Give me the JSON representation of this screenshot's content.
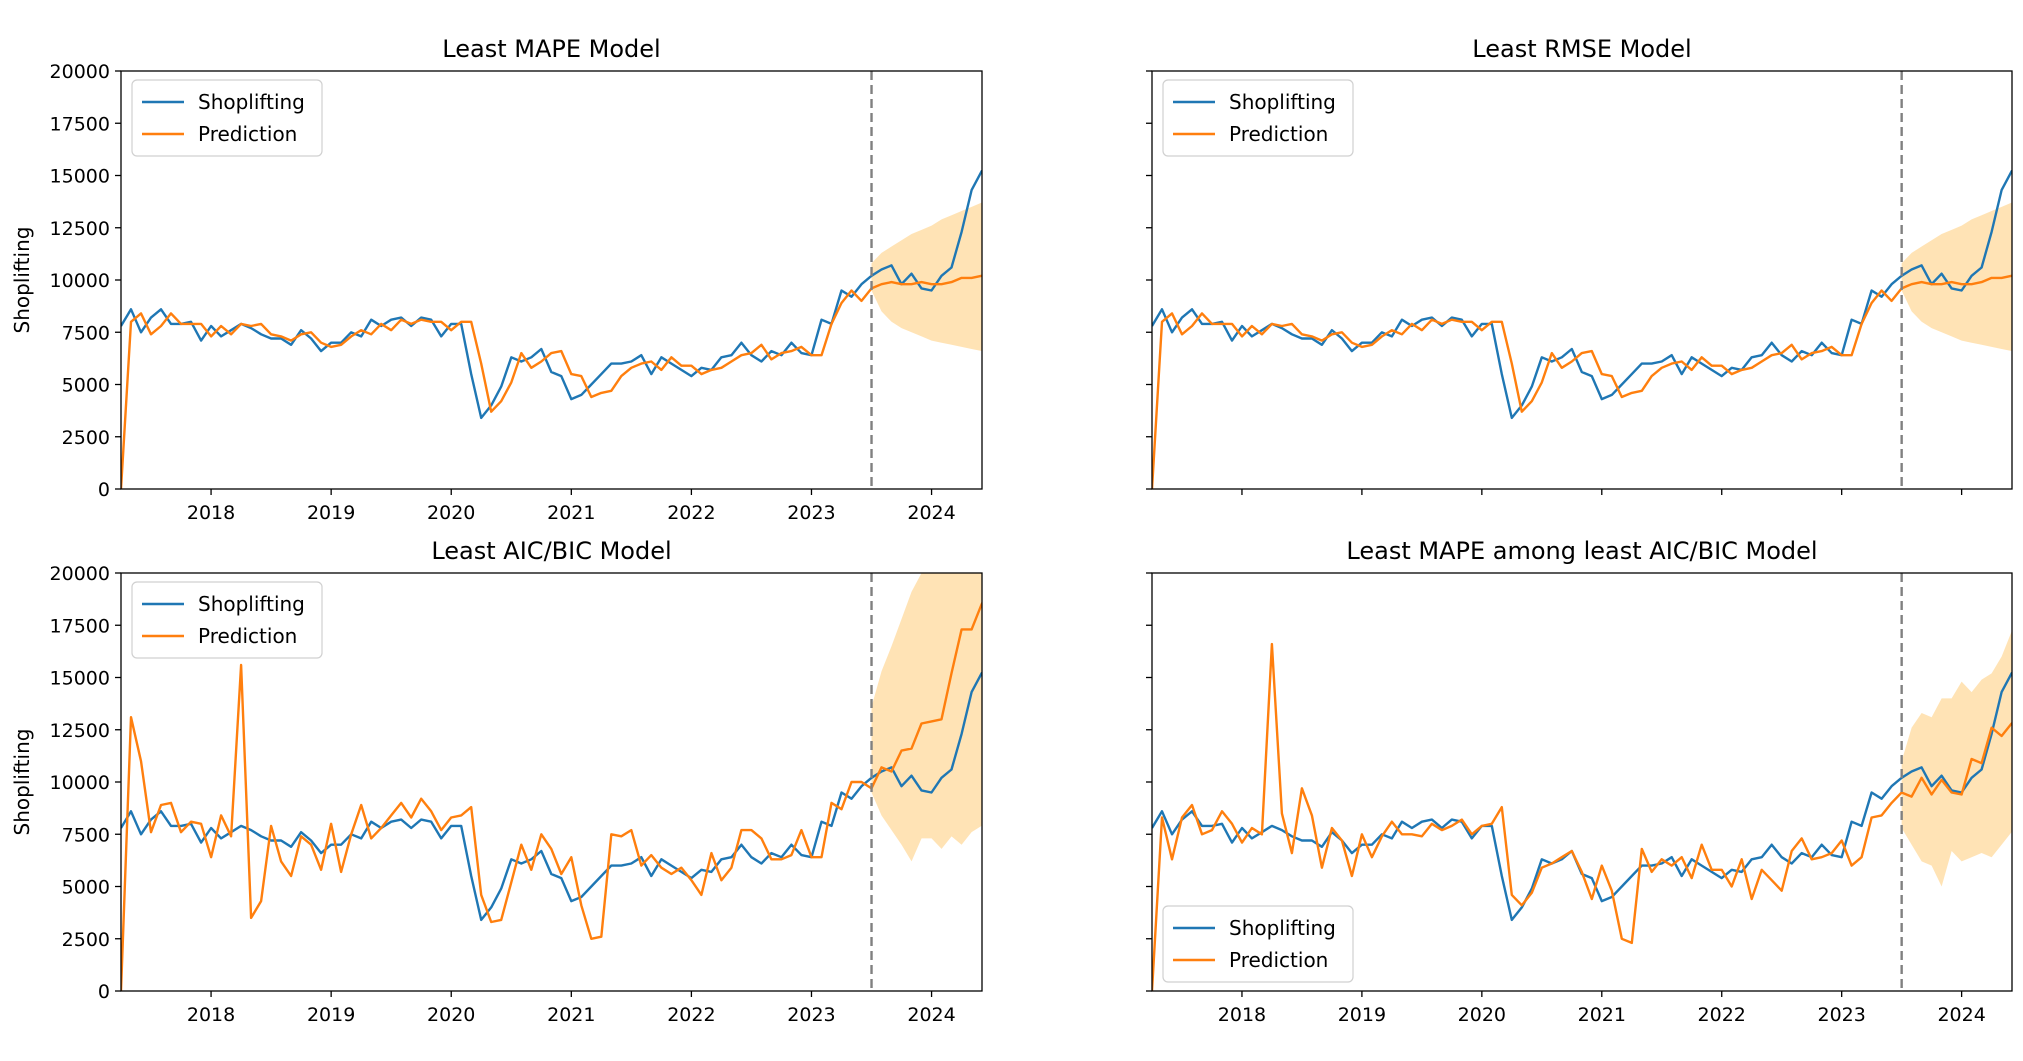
{
  "figure": {
    "colors": {
      "actual": "#1f77b4",
      "prediction": "#ff7f0e",
      "band": "#ffd99c",
      "divider": "#808080"
    }
  },
  "chart_data": [
    {
      "type": "line",
      "title": "Least MAPE Model",
      "xlabel": "",
      "ylabel": "Shoplifting",
      "xlim": [
        2017.25,
        2024.42
      ],
      "ylim": [
        0,
        20000
      ],
      "x_ticks": [
        "2018",
        "2019",
        "2020",
        "2021",
        "2022",
        "2023",
        "2024"
      ],
      "y_ticks": [
        "0",
        "2500",
        "5000",
        "7500",
        "10000",
        "12500",
        "15000",
        "17500",
        "20000"
      ],
      "legend_location": "upper left",
      "grid": false,
      "forecast_start": 2023.5,
      "series": [
        {
          "name": "Shoplifting",
          "x_start": 2017.25,
          "x_step": 0.08333,
          "values": [
            7800,
            8600,
            7500,
            8200,
            8600,
            7900,
            7900,
            8000,
            7100,
            7800,
            7300,
            7600,
            7900,
            7700,
            7400,
            7200,
            7200,
            6900,
            7600,
            7200,
            6600,
            7000,
            7000,
            7500,
            7300,
            8100,
            7800,
            8100,
            8200,
            7800,
            8200,
            8100,
            7300,
            7900,
            7900,
            5500,
            3400,
            4000,
            4900,
            6300,
            6100,
            6300,
            6700,
            5600,
            5400,
            4300,
            4500,
            5000,
            5500,
            6000,
            6000,
            6100,
            6400,
            5500,
            6300,
            6000,
            5700,
            5400,
            5800,
            5700,
            6300,
            6400,
            7000,
            6400,
            6100,
            6600,
            6400,
            7000,
            6500,
            6400,
            8100,
            7900,
            9500,
            9200,
            9800,
            10200,
            10500,
            10700,
            9800,
            10300,
            9600,
            9500,
            10200,
            10600,
            12300,
            14300,
            15200,
            14900
          ]
        },
        {
          "name": "Prediction",
          "x_start": 2017.25,
          "x_step": 0.08333,
          "values": [
            0,
            8000,
            8400,
            7400,
            7800,
            8400,
            7900,
            7900,
            7900,
            7300,
            7800,
            7400,
            7900,
            7800,
            7900,
            7400,
            7300,
            7100,
            7400,
            7500,
            7000,
            6800,
            6900,
            7300,
            7600,
            7400,
            7900,
            7600,
            8100,
            7900,
            8100,
            8000,
            8000,
            7600,
            8000,
            8000,
            6000,
            3700,
            4200,
            5100,
            6500,
            5800,
            6100,
            6500,
            6600,
            5500,
            5400,
            4400,
            4600,
            4700,
            5400,
            5800,
            6000,
            6100,
            5700,
            6300,
            5900,
            5900,
            5500,
            5700,
            5800,
            6100,
            6400,
            6500,
            6900,
            6200,
            6500,
            6600,
            6800,
            6400,
            6400,
            7900,
            8900,
            9500,
            9000,
            9600,
            9800,
            9900,
            9800,
            9800,
            9900,
            9800,
            9800,
            9900,
            10100,
            10100,
            10200,
            10300
          ]
        },
        {
          "name": "Prediction interval",
          "x_start": 2023.5,
          "x_step": 0.08333,
          "lower": [
            9500,
            8500,
            8000,
            7700,
            7500,
            7300,
            7100,
            7000,
            6900,
            6800,
            6700,
            6600,
            6500
          ],
          "upper": [
            10800,
            11300,
            11600,
            11900,
            12200,
            12400,
            12600,
            12900,
            13100,
            13300,
            13500,
            13700,
            13900
          ]
        }
      ]
    },
    {
      "type": "line",
      "title": "Least RMSE Model",
      "xlabel": "",
      "ylabel": "",
      "xlim": [
        2017.25,
        2024.42
      ],
      "ylim": [
        0,
        20000
      ],
      "x_ticks": [],
      "y_ticks": [],
      "legend_location": "upper left",
      "grid": false,
      "forecast_start": 2023.5,
      "series": [
        {
          "name": "Shoplifting",
          "x_start": 2017.25,
          "x_step": 0.08333,
          "values": [
            7800,
            8600,
            7500,
            8200,
            8600,
            7900,
            7900,
            8000,
            7100,
            7800,
            7300,
            7600,
            7900,
            7700,
            7400,
            7200,
            7200,
            6900,
            7600,
            7200,
            6600,
            7000,
            7000,
            7500,
            7300,
            8100,
            7800,
            8100,
            8200,
            7800,
            8200,
            8100,
            7300,
            7900,
            7900,
            5500,
            3400,
            4000,
            4900,
            6300,
            6100,
            6300,
            6700,
            5600,
            5400,
            4300,
            4500,
            5000,
            5500,
            6000,
            6000,
            6100,
            6400,
            5500,
            6300,
            6000,
            5700,
            5400,
            5800,
            5700,
            6300,
            6400,
            7000,
            6400,
            6100,
            6600,
            6400,
            7000,
            6500,
            6400,
            8100,
            7900,
            9500,
            9200,
            9800,
            10200,
            10500,
            10700,
            9800,
            10300,
            9600,
            9500,
            10200,
            10600,
            12300,
            14300,
            15200,
            14900
          ]
        },
        {
          "name": "Prediction",
          "x_start": 2017.25,
          "x_step": 0.08333,
          "values": [
            0,
            8000,
            8400,
            7400,
            7800,
            8400,
            7900,
            7900,
            7900,
            7300,
            7800,
            7400,
            7900,
            7800,
            7900,
            7400,
            7300,
            7100,
            7400,
            7500,
            7000,
            6800,
            6900,
            7300,
            7600,
            7400,
            7900,
            7600,
            8100,
            7900,
            8100,
            8000,
            8000,
            7600,
            8000,
            8000,
            6000,
            3700,
            4200,
            5100,
            6500,
            5800,
            6100,
            6500,
            6600,
            5500,
            5400,
            4400,
            4600,
            4700,
            5400,
            5800,
            6000,
            6100,
            5700,
            6300,
            5900,
            5900,
            5500,
            5700,
            5800,
            6100,
            6400,
            6500,
            6900,
            6200,
            6500,
            6600,
            6800,
            6400,
            6400,
            7900,
            8900,
            9500,
            9000,
            9600,
            9800,
            9900,
            9800,
            9800,
            9900,
            9800,
            9800,
            9900,
            10100,
            10100,
            10200,
            10300
          ]
        },
        {
          "name": "Prediction interval",
          "x_start": 2023.5,
          "x_step": 0.08333,
          "lower": [
            9500,
            8500,
            8000,
            7700,
            7500,
            7300,
            7100,
            7000,
            6900,
            6800,
            6700,
            6600,
            6500
          ],
          "upper": [
            10800,
            11300,
            11600,
            11900,
            12200,
            12400,
            12600,
            12900,
            13100,
            13300,
            13500,
            13700,
            13900
          ]
        }
      ]
    },
    {
      "type": "line",
      "title": "Least AIC/BIC Model",
      "xlabel": "",
      "ylabel": "Shoplifting",
      "xlim": [
        2017.25,
        2024.42
      ],
      "ylim": [
        0,
        20000
      ],
      "x_ticks": [
        "2018",
        "2019",
        "2020",
        "2021",
        "2022",
        "2023",
        "2024"
      ],
      "y_ticks": [
        "0",
        "2500",
        "5000",
        "7500",
        "10000",
        "12500",
        "15000",
        "17500",
        "20000"
      ],
      "legend_location": "upper left",
      "grid": false,
      "forecast_start": 2023.5,
      "series": [
        {
          "name": "Shoplifting",
          "x_start": 2017.25,
          "x_step": 0.08333,
          "values": [
            7800,
            8600,
            7500,
            8200,
            8600,
            7900,
            7900,
            8000,
            7100,
            7800,
            7300,
            7600,
            7900,
            7700,
            7400,
            7200,
            7200,
            6900,
            7600,
            7200,
            6600,
            7000,
            7000,
            7500,
            7300,
            8100,
            7800,
            8100,
            8200,
            7800,
            8200,
            8100,
            7300,
            7900,
            7900,
            5500,
            3400,
            4000,
            4900,
            6300,
            6100,
            6300,
            6700,
            5600,
            5400,
            4300,
            4500,
            5000,
            5500,
            6000,
            6000,
            6100,
            6400,
            5500,
            6300,
            6000,
            5700,
            5400,
            5800,
            5700,
            6300,
            6400,
            7000,
            6400,
            6100,
            6600,
            6400,
            7000,
            6500,
            6400,
            8100,
            7900,
            9500,
            9200,
            9800,
            10200,
            10500,
            10700,
            9800,
            10300,
            9600,
            9500,
            10200,
            10600,
            12300,
            14300,
            15200,
            14900
          ]
        },
        {
          "name": "Prediction",
          "x_start": 2017.25,
          "x_step": 0.08333,
          "values": [
            0,
            13100,
            11000,
            7600,
            8900,
            9000,
            7600,
            8100,
            8000,
            6400,
            8400,
            7400,
            15600,
            3500,
            4300,
            7900,
            6200,
            5500,
            7400,
            7000,
            5800,
            8000,
            5700,
            7500,
            8900,
            7300,
            7800,
            8400,
            9000,
            8300,
            9200,
            8600,
            7700,
            8300,
            8400,
            8800,
            4600,
            3300,
            3400,
            5200,
            7000,
            5800,
            7500,
            6800,
            5600,
            6400,
            4100,
            2500,
            2600,
            7500,
            7400,
            7700,
            6000,
            6500,
            5900,
            5600,
            5900,
            5300,
            4600,
            6600,
            5300,
            5900,
            7700,
            7700,
            7300,
            6300,
            6300,
            6500,
            7700,
            6400,
            6400,
            9000,
            8700,
            10000,
            10000,
            9700,
            10700,
            10500,
            11500,
            11600,
            12800,
            12900,
            13000,
            15200,
            17300,
            17300,
            18500,
            19400
          ]
        },
        {
          "name": "Prediction interval",
          "x_start": 2023.5,
          "x_step": 0.08333,
          "lower": [
            9500,
            8400,
            7700,
            7000,
            6200,
            7300,
            7300,
            6800,
            7400,
            7000,
            7600,
            7900,
            7800
          ],
          "upper": [
            13600,
            15300,
            16500,
            17800,
            19100,
            20000,
            20000,
            20000,
            20000,
            20000,
            20000,
            20000,
            20000
          ]
        }
      ]
    },
    {
      "type": "line",
      "title": "Least MAPE among least AIC/BIC Model",
      "xlabel": "",
      "ylabel": "",
      "xlim": [
        2017.25,
        2024.42
      ],
      "ylim": [
        0,
        20000
      ],
      "x_ticks": [
        "2018",
        "2019",
        "2020",
        "2021",
        "2022",
        "2023",
        "2024"
      ],
      "y_ticks": [],
      "legend_location": "lower left",
      "grid": false,
      "forecast_start": 2023.5,
      "series": [
        {
          "name": "Shoplifting",
          "x_start": 2017.25,
          "x_step": 0.08333,
          "values": [
            7800,
            8600,
            7500,
            8200,
            8600,
            7900,
            7900,
            8000,
            7100,
            7800,
            7300,
            7600,
            7900,
            7700,
            7400,
            7200,
            7200,
            6900,
            7600,
            7200,
            6600,
            7000,
            7000,
            7500,
            7300,
            8100,
            7800,
            8100,
            8200,
            7800,
            8200,
            8100,
            7300,
            7900,
            7900,
            5500,
            3400,
            4000,
            4900,
            6300,
            6100,
            6300,
            6700,
            5600,
            5400,
            4300,
            4500,
            5000,
            5500,
            6000,
            6000,
            6100,
            6400,
            5500,
            6300,
            6000,
            5700,
            5400,
            5800,
            5700,
            6300,
            6400,
            7000,
            6400,
            6100,
            6600,
            6400,
            7000,
            6500,
            6400,
            8100,
            7900,
            9500,
            9200,
            9800,
            10200,
            10500,
            10700,
            9800,
            10300,
            9600,
            9500,
            10200,
            10600,
            12300,
            14300,
            15200,
            14900
          ]
        },
        {
          "name": "Prediction",
          "x_start": 2017.25,
          "x_step": 0.08333,
          "values": [
            0,
            8300,
            6300,
            8300,
            8900,
            7500,
            7700,
            8600,
            8000,
            7100,
            7800,
            7500,
            16600,
            8500,
            6600,
            9700,
            8400,
            5900,
            7800,
            7200,
            5500,
            7500,
            6400,
            7400,
            8100,
            7500,
            7500,
            7400,
            8000,
            7700,
            7900,
            8200,
            7500,
            7900,
            8000,
            8800,
            4600,
            4100,
            4700,
            5900,
            6100,
            6400,
            6700,
            5700,
            4400,
            6000,
            4800,
            2500,
            2300,
            6800,
            5700,
            6300,
            6000,
            6400,
            5400,
            7000,
            5800,
            5800,
            5000,
            6300,
            4400,
            5800,
            5300,
            4800,
            6700,
            7300,
            6300,
            6400,
            6600,
            7200,
            6000,
            6400,
            8300,
            8400,
            9000,
            9500,
            9300,
            10200,
            9400,
            10100,
            9500,
            9400,
            11100,
            10900,
            12600,
            12200,
            12800,
            13100
          ]
        },
        {
          "name": "Prediction interval",
          "x_start": 2023.5,
          "x_step": 0.08333,
          "lower": [
            7800,
            7000,
            6200,
            6000,
            5000,
            6700,
            6200,
            6400,
            6600,
            6400,
            7000,
            7600,
            8000
          ],
          "upper": [
            11000,
            12600,
            13300,
            13100,
            14000,
            14000,
            14800,
            14300,
            14900,
            15200,
            16000,
            17200,
            18200
          ]
        }
      ]
    }
  ]
}
